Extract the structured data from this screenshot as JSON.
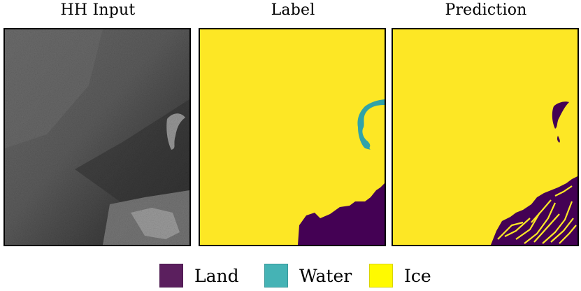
{
  "panels": [
    {
      "title": "HH Input"
    },
    {
      "title": "Label"
    },
    {
      "title": "Prediction"
    }
  ],
  "legend": [
    {
      "label": "Land",
      "color": "#5b1f5e"
    },
    {
      "label": "Water",
      "color": "#45b3b5"
    },
    {
      "label": "Ice",
      "color": "#fde725"
    }
  ],
  "colors": {
    "land": "#440154",
    "water": "#31a3a9",
    "ice": "#fde725",
    "sar_dark": "#3b3b3b",
    "sar_light": "#6e6e6e"
  }
}
